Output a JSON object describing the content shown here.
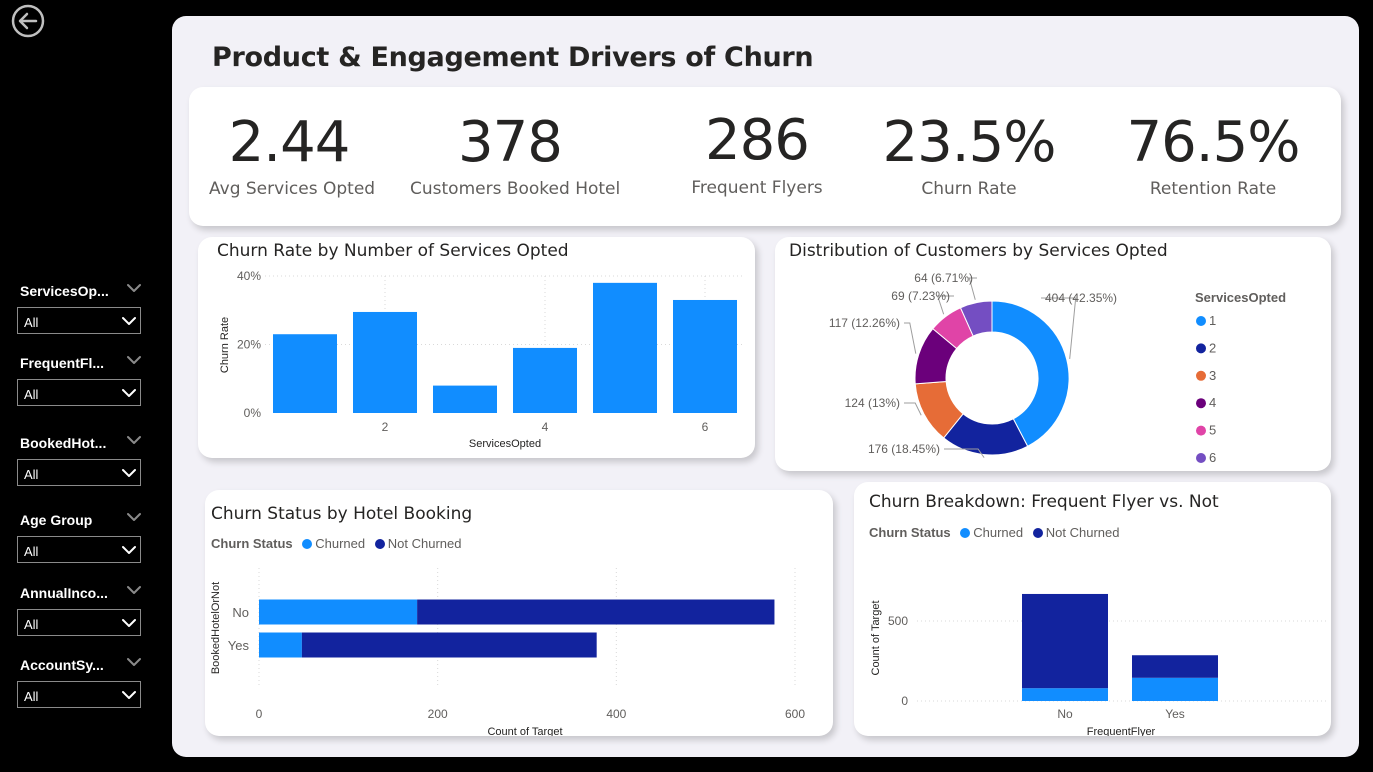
{
  "page_title": "Product & Engagement Drivers of Churn",
  "back_icon": "circle-arrow-left-icon",
  "slicers": [
    {
      "title": "ServicesOp...",
      "value": "All"
    },
    {
      "title": "FrequentFl...",
      "value": "All"
    },
    {
      "title": "BookedHot...",
      "value": "All"
    },
    {
      "title": "Age Group",
      "value": "All"
    },
    {
      "title": "AnnualInco...",
      "value": "All"
    },
    {
      "title": "AccountSy...",
      "value": "All"
    }
  ],
  "kpis": [
    {
      "value": "2.44",
      "label": "Avg Services Opted"
    },
    {
      "value": "378",
      "label": "Customers Booked Hotel"
    },
    {
      "value": "286",
      "label": "Frequent Flyers"
    },
    {
      "value": "23.5%",
      "label": "Churn Rate"
    },
    {
      "value": "76.5%",
      "label": "Retention Rate"
    }
  ],
  "colors": {
    "churned": "#118dff",
    "not_churned": "#12239e",
    "s1": "#118dff",
    "s2": "#12239e",
    "s3": "#e66c37",
    "s4": "#6b007b",
    "s5": "#e044a7",
    "s6": "#744ec2"
  },
  "charts": {
    "churn_by_services": {
      "title": "Churn Rate by Number of Services Opted",
      "xlabel": "ServicesOpted",
      "ylabel": "Churn Rate",
      "yticks": [
        "0%",
        "20%",
        "40%"
      ],
      "xticks": [
        "2",
        "4",
        "6"
      ]
    },
    "distribution": {
      "title": "Distribution of Customers by Services Opted",
      "legend_title": "ServicesOpted",
      "legend_items": [
        "1",
        "2",
        "3",
        "4",
        "5",
        "6"
      ],
      "labels": [
        "404 (42.35%)",
        "176 (18.45%)",
        "124 (13%)",
        "117 (12.26%)",
        "69 (7.23%)",
        "64 (6.71%)"
      ]
    },
    "hotel": {
      "title": "Churn Status by Hotel Booking",
      "legend_title": "Churn Status",
      "legend_churned": "Churned",
      "legend_not_churned": "Not Churned",
      "ylabel": "BookedHotelOrNot",
      "xlabel": "Count of Target",
      "categories": [
        "No",
        "Yes"
      ],
      "xticks": [
        "0",
        "200",
        "400",
        "600"
      ]
    },
    "flyer": {
      "title": "Churn Breakdown: Frequent Flyer vs. Not",
      "legend_title": "Churn Status",
      "legend_churned": "Churned",
      "legend_not_churned": "Not Churned",
      "ylabel": "Count of Target",
      "xlabel": "FrequentFlyer",
      "categories": [
        "No",
        "Yes"
      ],
      "yticks": [
        "0",
        "500"
      ]
    }
  },
  "chart_data": [
    {
      "type": "bar",
      "title": "Churn Rate by Number of Services Opted",
      "xlabel": "ServicesOpted",
      "ylabel": "Churn Rate",
      "categories": [
        1,
        2,
        3,
        4,
        5,
        6
      ],
      "values": [
        0.23,
        0.295,
        0.08,
        0.19,
        0.38,
        0.33
      ],
      "ylim": [
        0,
        0.4
      ],
      "grid": true
    },
    {
      "type": "pie",
      "title": "Distribution of Customers by Services Opted",
      "categories": [
        "1",
        "2",
        "3",
        "4",
        "5",
        "6"
      ],
      "values": [
        404,
        176,
        124,
        117,
        69,
        64
      ],
      "percents": [
        42.35,
        18.45,
        13,
        12.26,
        7.23,
        6.71
      ],
      "donut": true,
      "legend": "right"
    },
    {
      "type": "bar",
      "orientation": "horizontal",
      "stacked": true,
      "title": "Churn Status by Hotel Booking",
      "xlabel": "Count of Target",
      "ylabel": "BookedHotelOrNot",
      "categories": [
        "No",
        "Yes"
      ],
      "series": [
        {
          "name": "Churned",
          "values": [
            177,
            48
          ]
        },
        {
          "name": "Not Churned",
          "values": [
            400,
            330
          ]
        }
      ],
      "xlim": [
        0,
        600
      ],
      "legend": "top-left"
    },
    {
      "type": "bar",
      "stacked": true,
      "title": "Churn Breakdown: Frequent Flyer vs. Not",
      "xlabel": "FrequentFlyer",
      "ylabel": "Count of Target",
      "categories": [
        "No",
        "Yes"
      ],
      "series": [
        {
          "name": "Churned",
          "values": [
            80,
            145
          ]
        },
        {
          "name": "Not Churned",
          "values": [
            589,
            141
          ]
        }
      ],
      "ylim": [
        0,
        700
      ],
      "legend": "top-left"
    }
  ]
}
